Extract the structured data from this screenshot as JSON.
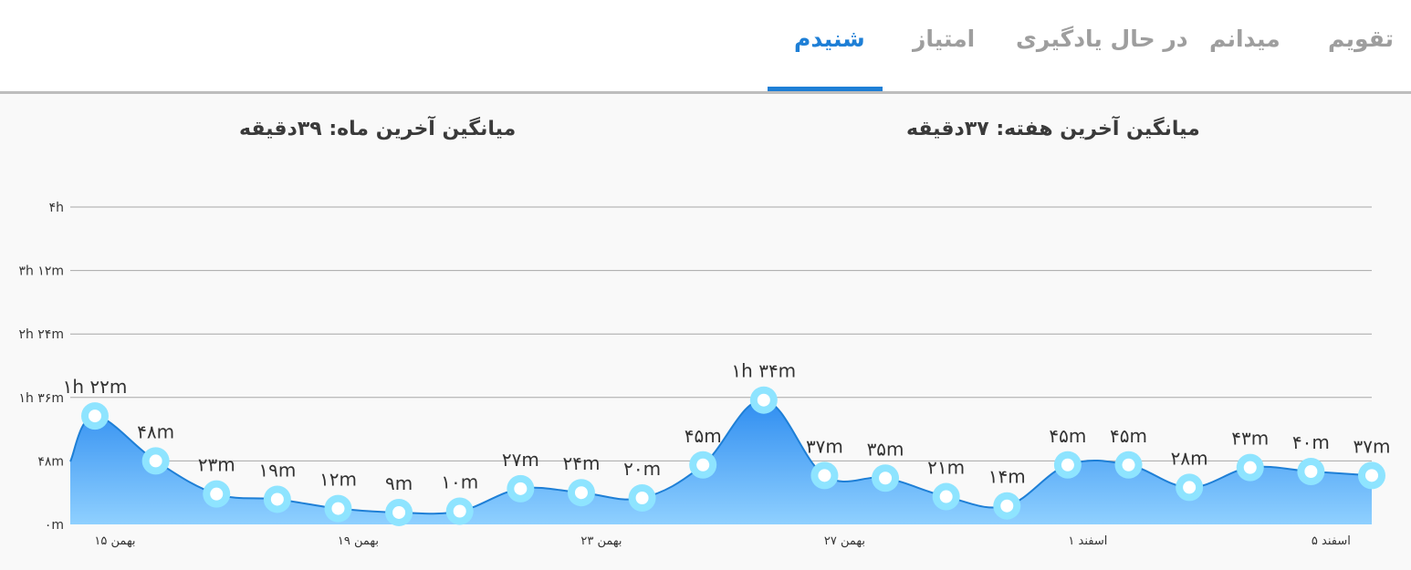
{
  "tabs": [
    {
      "label": "تقویم",
      "active": false
    },
    {
      "label": "میدانم",
      "active": false
    },
    {
      "label": "در حال یادگیری",
      "active": false
    },
    {
      "label": "امتیاز",
      "active": false
    },
    {
      "label": "شنیدم",
      "active": true
    }
  ],
  "summary": {
    "week_average": "میانگین آخرین هفته: ۳۷دقیقه",
    "month_average": "میانگین آخرین ماه: ۳۹دقیقه"
  },
  "colors": {
    "accent": "#1e7fd6",
    "area_top": "#2f8df0",
    "area_bottom": "#8fd0ff",
    "marker_ring": "#8ee4ff"
  },
  "chart_data": {
    "type": "area",
    "y_unit": "minutes",
    "ylim": [
      0,
      240
    ],
    "y_ticks": [
      {
        "value": 0,
        "label": "۰m"
      },
      {
        "value": 48,
        "label": "۴۸m"
      },
      {
        "value": 96,
        "label": "۱h ۳۶m"
      },
      {
        "value": 144,
        "label": "۲h ۲۴m"
      },
      {
        "value": 192,
        "label": "۳h ۱۲m"
      },
      {
        "value": 240,
        "label": "۴h"
      }
    ],
    "x_ticks": [
      {
        "index": 0,
        "label": "۱۵ بهمن"
      },
      {
        "index": 4,
        "label": "۱۹ بهمن"
      },
      {
        "index": 8,
        "label": "۲۳ بهمن"
      },
      {
        "index": 12,
        "label": "۲۷ بهمن"
      },
      {
        "index": 16,
        "label": "۱ اسفند"
      },
      {
        "index": 20,
        "label": "۵ اسفند"
      }
    ],
    "points": [
      {
        "value": 82,
        "label": "۱h ۲۲m"
      },
      {
        "value": 48,
        "label": "۴۸m"
      },
      {
        "value": 23,
        "label": "۲۳m"
      },
      {
        "value": 19,
        "label": "۱۹m"
      },
      {
        "value": 12,
        "label": "۱۲m"
      },
      {
        "value": 9,
        "label": "۹m"
      },
      {
        "value": 10,
        "label": "۱۰m"
      },
      {
        "value": 27,
        "label": "۲۷m"
      },
      {
        "value": 24,
        "label": "۲۴m"
      },
      {
        "value": 20,
        "label": "۲۰m"
      },
      {
        "value": 45,
        "label": "۴۵m"
      },
      {
        "value": 94,
        "label": "۱h ۳۴m"
      },
      {
        "value": 37,
        "label": "۳۷m"
      },
      {
        "value": 35,
        "label": "۳۵m"
      },
      {
        "value": 21,
        "label": "۲۱m"
      },
      {
        "value": 14,
        "label": "۱۴m"
      },
      {
        "value": 45,
        "label": "۴۵m"
      },
      {
        "value": 45,
        "label": "۴۵m"
      },
      {
        "value": 28,
        "label": "۲۸m"
      },
      {
        "value": 43,
        "label": "۴۳m"
      },
      {
        "value": 40,
        "label": "۴۰m"
      },
      {
        "value": 37,
        "label": "۳۷m"
      }
    ]
  }
}
